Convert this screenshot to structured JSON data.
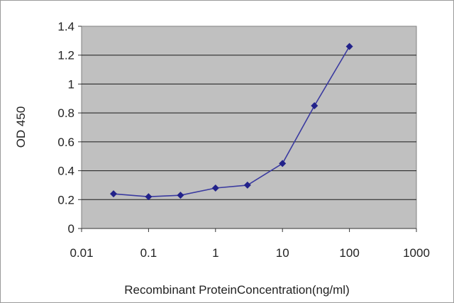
{
  "chart_data": {
    "type": "line",
    "title": "",
    "xlabel": "Recombinant ProteinConcentration(ng/ml)",
    "ylabel": "OD 450",
    "x_scale": "log",
    "xlim": [
      0.01,
      1000
    ],
    "ylim": [
      0,
      1.4
    ],
    "x_ticks": [
      0.01,
      0.1,
      1,
      10,
      100,
      1000
    ],
    "x_tick_labels": [
      "0.01",
      "0.1",
      "1",
      "10",
      "100",
      "1000"
    ],
    "y_ticks": [
      0,
      0.2,
      0.4,
      0.6,
      0.8,
      1,
      1.2,
      1.4
    ],
    "y_tick_labels": [
      "0",
      "0.2",
      "0.4",
      "0.6",
      "0.8",
      "1",
      "1.2",
      "1.4"
    ],
    "grid": "horizontal",
    "legend": "none",
    "series": [
      {
        "color": "#3a3aa0",
        "marker": "diamond",
        "x": [
          0.03,
          0.1,
          0.3,
          1,
          3,
          10,
          30,
          100
        ],
        "y": [
          0.24,
          0.22,
          0.23,
          0.28,
          0.3,
          0.45,
          0.85,
          1.26
        ]
      }
    ],
    "colors": {
      "plot_bg": "#c0c0c0",
      "grid": "#1a1a1a",
      "line": "#3a3aa0",
      "marker": "#22228a"
    }
  }
}
